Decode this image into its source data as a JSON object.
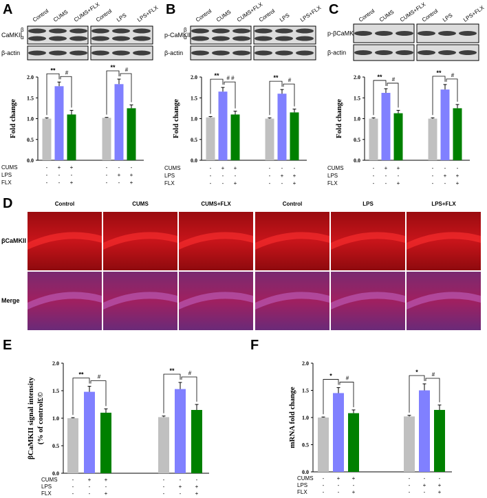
{
  "blots": [
    {
      "panel": "A",
      "lanes": [
        "Control",
        "CUMS",
        "CUMS+FLX",
        "Control",
        "LPS",
        "LPS+FLX"
      ],
      "rows": [
        {
          "name": "CaMKII",
          "bands": [
            "β",
            "α"
          ]
        },
        {
          "name": "β-actin"
        }
      ]
    },
    {
      "panel": "B",
      "lanes": [
        "Control",
        "CUMS",
        "CUMS+FLX",
        "Control",
        "LPS",
        "LPS+FLX"
      ],
      "rows": [
        {
          "name": "p-CaMKII",
          "bands": [
            "β",
            "α"
          ]
        },
        {
          "name": "β-actin"
        }
      ]
    },
    {
      "panel": "C",
      "lanes": [
        "Control",
        "CUMS",
        "CUMS+FLX",
        "Control",
        "LPS",
        "LPS+FLX"
      ],
      "rows": [
        {
          "name": "p-βCaMKII"
        },
        {
          "name": "β-actin"
        }
      ]
    }
  ],
  "image_panel": {
    "panel": "D",
    "columns": [
      "Control",
      "CUMS",
      "CUMS+FLX",
      "Control",
      "LPS",
      "LPS+FLX"
    ],
    "rows": [
      "βCaMKII",
      "Merge"
    ]
  },
  "chart_data": [
    {
      "type": "bar",
      "panel": "A",
      "ylabel": "Fold  change",
      "categories": [
        null,
        null,
        null,
        null,
        null,
        null
      ],
      "values": [
        1.0,
        1.78,
        1.1,
        1.02,
        1.83,
        1.25
      ],
      "errors": [
        0.02,
        0.1,
        0.1,
        0.01,
        0.12,
        0.08
      ],
      "colors": [
        "#c0c0c0",
        "#8080ff",
        "#008000",
        "#c0c0c0",
        "#8080ff",
        "#008000"
      ],
      "ylim": [
        0,
        2
      ],
      "yticks": [
        {
          "value": 0,
          "label": "0.0"
        },
        {
          "value": 0.5,
          "label": "0.5"
        },
        {
          "value": 1,
          "label": "1.0"
        },
        {
          "value": 1.5,
          "label": "1.5"
        },
        {
          "value": 2,
          "label": "2.0"
        }
      ],
      "significance": [
        [
          "**",
          "#"
        ],
        [
          "**",
          "#"
        ]
      ],
      "treatments": [
        {
          "name": "CUMS",
          "marks": [
            "-",
            "+",
            "+",
            "-",
            "-",
            "-"
          ]
        },
        {
          "name": "LPS",
          "marks": [
            "-",
            "-",
            "-",
            "-",
            "+",
            "+"
          ]
        },
        {
          "name": "FLX",
          "marks": [
            "-",
            "-",
            "+",
            "-",
            "-",
            "+"
          ]
        }
      ]
    },
    {
      "type": "bar",
      "panel": "B",
      "ylabel": "Fold  change",
      "categories": [
        null,
        null,
        null,
        null,
        null,
        null
      ],
      "values": [
        1.03,
        1.65,
        1.1,
        1.0,
        1.6,
        1.15
      ],
      "errors": [
        0.02,
        0.1,
        0.08,
        0.02,
        0.1,
        0.08
      ],
      "colors": [
        "#c0c0c0",
        "#8080ff",
        "#008000",
        "#c0c0c0",
        "#8080ff",
        "#008000"
      ],
      "ylim": [
        0,
        2
      ],
      "yticks": [
        {
          "value": 0,
          "label": "0.0"
        },
        {
          "value": 0.5,
          "label": "0.5"
        },
        {
          "value": 1,
          "label": "1.0"
        },
        {
          "value": 1.5,
          "label": "1.5"
        },
        {
          "value": 2,
          "label": "2.0"
        }
      ],
      "significance": [
        [
          "**",
          "# #"
        ],
        [
          "**",
          "#"
        ]
      ],
      "treatments": [
        {
          "name": "CUMS",
          "marks": [
            "-",
            "+",
            "+",
            "-",
            "-",
            "-"
          ]
        },
        {
          "name": "LPS",
          "marks": [
            "-",
            "-",
            "-",
            "-",
            "+",
            "+"
          ]
        },
        {
          "name": "FLX",
          "marks": [
            "-",
            "-",
            "+",
            "-",
            "-",
            "+"
          ]
        }
      ]
    },
    {
      "type": "bar",
      "panel": "C",
      "ylabel": "Fold  change",
      "categories": [
        null,
        null,
        null,
        null,
        null,
        null
      ],
      "values": [
        1.0,
        1.62,
        1.13,
        1.0,
        1.7,
        1.25
      ],
      "errors": [
        0.02,
        0.1,
        0.07,
        0.02,
        0.12,
        0.09
      ],
      "colors": [
        "#c0c0c0",
        "#8080ff",
        "#008000",
        "#c0c0c0",
        "#8080ff",
        "#008000"
      ],
      "ylim": [
        0,
        2
      ],
      "yticks": [
        {
          "value": 0,
          "label": "0.0"
        },
        {
          "value": 0.5,
          "label": "0.5"
        },
        {
          "value": 1,
          "label": "1.0"
        },
        {
          "value": 1.5,
          "label": "1.5"
        },
        {
          "value": 2,
          "label": "2.0"
        }
      ],
      "significance": [
        [
          "**",
          "#"
        ],
        [
          "**",
          "#"
        ]
      ],
      "treatments": [
        {
          "name": "CUMS",
          "marks": [
            "-",
            "+",
            "+",
            "-",
            "-",
            "-"
          ]
        },
        {
          "name": "LPS",
          "marks": [
            "-",
            "-",
            "-",
            "-",
            "+",
            "+"
          ]
        },
        {
          "name": "FLX",
          "marks": [
            "-",
            "-",
            "+",
            "-",
            "-",
            "+"
          ]
        }
      ]
    },
    {
      "type": "bar",
      "panel": "E",
      "ylabel": [
        "βCaMKII signal intensity",
        "(% of control£©"
      ],
      "categories": [
        null,
        null,
        null,
        null,
        null,
        null
      ],
      "values": [
        1.0,
        1.48,
        1.1,
        1.02,
        1.53,
        1.15
      ],
      "errors": [
        0.01,
        0.1,
        0.07,
        0.02,
        0.12,
        0.1
      ],
      "colors": [
        "#c0c0c0",
        "#8080ff",
        "#008000",
        "#c0c0c0",
        "#8080ff",
        "#008000"
      ],
      "ylim": [
        0,
        2
      ],
      "yticks": [
        {
          "value": 0,
          "label": "0.0"
        },
        {
          "value": 0.5,
          "label": "0.5"
        },
        {
          "value": 1,
          "label": "1.0"
        },
        {
          "value": 1.5,
          "label": "1.5"
        },
        {
          "value": 2,
          "label": "2.0"
        }
      ],
      "significance": [
        [
          "**",
          "#"
        ],
        [
          "**",
          "#"
        ]
      ],
      "treatments": [
        {
          "name": "CUMS",
          "marks": [
            "-",
            "+",
            "+",
            "-",
            "-",
            "-"
          ]
        },
        {
          "name": "LPS",
          "marks": [
            "-",
            "-",
            "-",
            "-",
            "+",
            "+"
          ]
        },
        {
          "name": "FLX",
          "marks": [
            "-",
            "-",
            "+",
            "-",
            "-",
            "+"
          ]
        }
      ]
    },
    {
      "type": "bar",
      "panel": "F",
      "ylabel": "mRNA fold change",
      "categories": [
        null,
        null,
        null,
        null,
        null,
        null
      ],
      "values": [
        1.0,
        1.45,
        1.08,
        1.02,
        1.5,
        1.14
      ],
      "errors": [
        0.01,
        0.1,
        0.06,
        0.02,
        0.12,
        0.09
      ],
      "colors": [
        "#c0c0c0",
        "#8080ff",
        "#008000",
        "#c0c0c0",
        "#8080ff",
        "#008000"
      ],
      "ylim": [
        0,
        2
      ],
      "yticks": [
        {
          "value": 0,
          "label": "0.0"
        },
        {
          "value": 0.5,
          "label": "0.5"
        },
        {
          "value": 1,
          "label": "1.0"
        },
        {
          "value": 1.5,
          "label": "1.5"
        },
        {
          "value": 2,
          "label": "2.0"
        }
      ],
      "significance": [
        [
          "*",
          "#"
        ],
        [
          "*",
          "#"
        ]
      ],
      "treatments": [
        {
          "name": "CUMS",
          "marks": [
            "-",
            "+",
            "+",
            "-",
            "-",
            "-"
          ]
        },
        {
          "name": "LPS",
          "marks": [
            "-",
            "-",
            "-",
            "-",
            "+",
            "+"
          ]
        },
        {
          "name": "FLX",
          "marks": [
            "-",
            "-",
            "+",
            "-",
            "-",
            "+"
          ]
        }
      ]
    }
  ]
}
